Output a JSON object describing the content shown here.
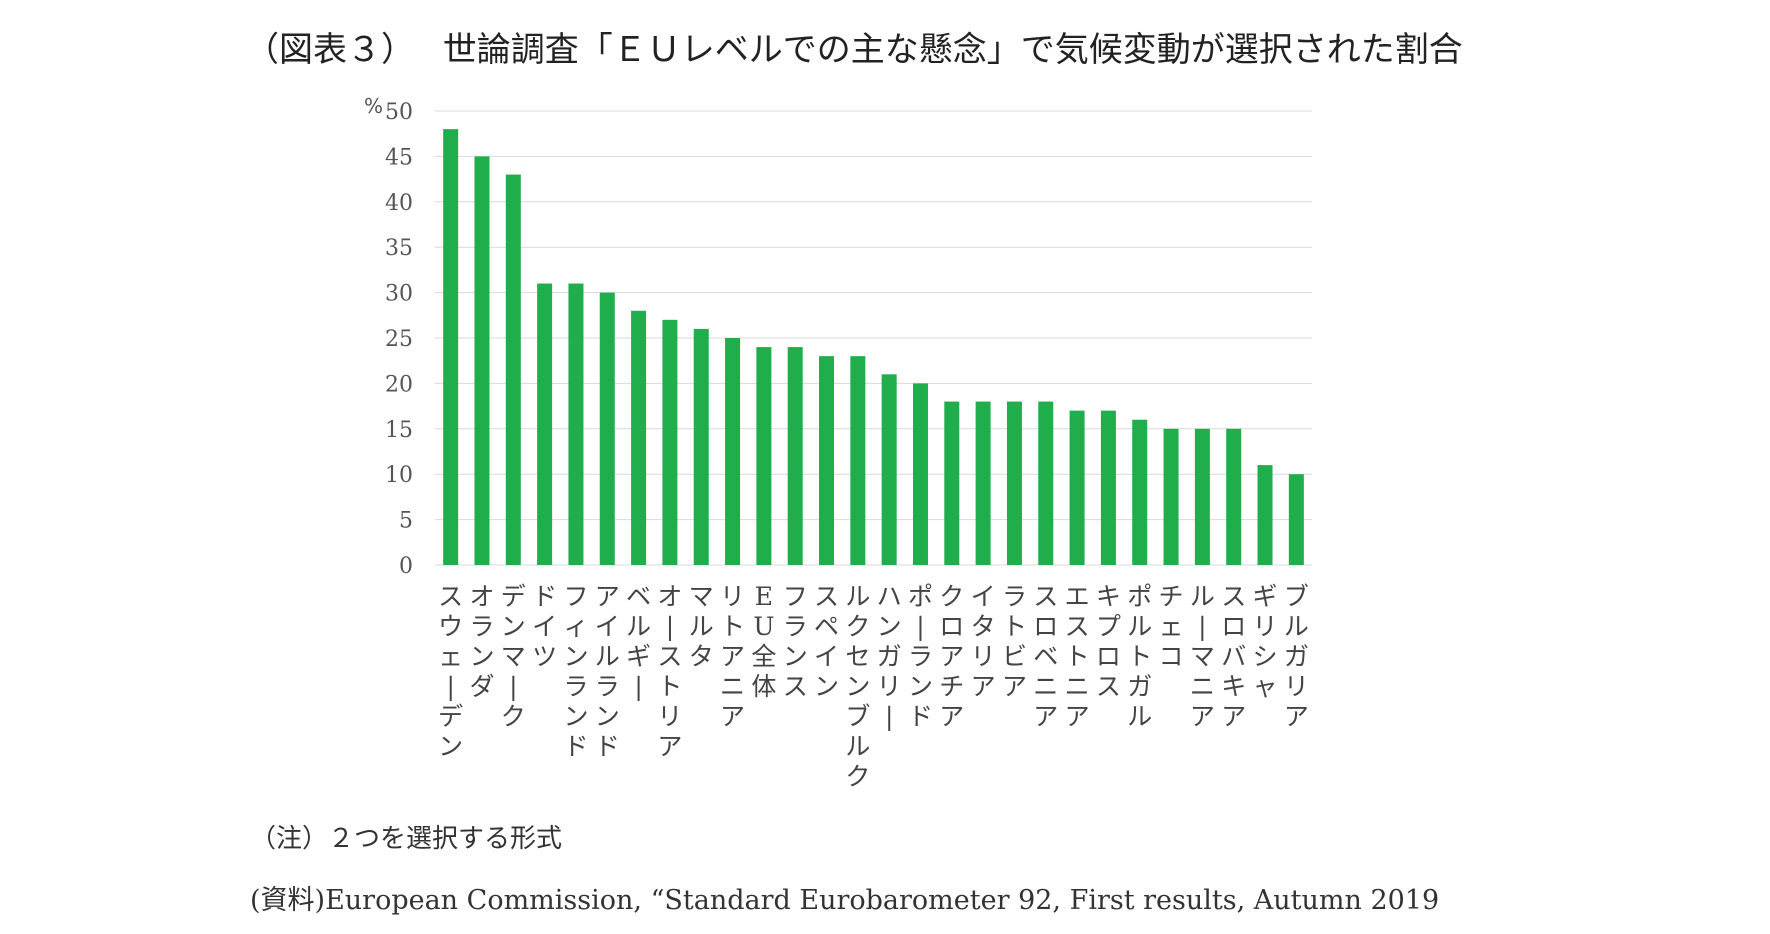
{
  "title": "（図表３）　 世論調査「ＥＵレベルでの主な懸念」で気候変動が選択された割合",
  "note": "（注）２つを選択する形式",
  "source": "(資料)European Commission, “Standard Eurobarometer 92, First results, Autumn 2019",
  "chart_data": {
    "type": "bar",
    "title": "",
    "ylabel": "%",
    "xlabel": "",
    "ylim": [
      0,
      50
    ],
    "yticks": [
      0,
      5,
      10,
      15,
      20,
      25,
      30,
      35,
      40,
      45,
      50
    ],
    "grid": true,
    "legend": "none",
    "bar_color": "#1fae4b",
    "grid_color": "#d9d9d9",
    "categories": [
      "スウェーデン",
      "オランダ",
      "デンマーク",
      "ドイツ",
      "フィンランド",
      "アイルランド",
      "ベルギー",
      "オーストリア",
      "マルタ",
      "リトアニア",
      "EU全体",
      "フランス",
      "スペイン",
      "ルクセンブルク",
      "ハンガリー",
      "ポーランド",
      "クロアチア",
      "イタリア",
      "ラトビア",
      "スロベニア",
      "エストニア",
      "キプロス",
      "ポルトガル",
      "チェコ",
      "ルーマニア",
      "スロバキア",
      "ギリシャ",
      "ブルガリア"
    ],
    "values": [
      48,
      45,
      43,
      31,
      31,
      30,
      28,
      27,
      26,
      25,
      24,
      24,
      23,
      23,
      21,
      20,
      18,
      18,
      18,
      18,
      17,
      17,
      16,
      15,
      15,
      15,
      11,
      10
    ]
  }
}
